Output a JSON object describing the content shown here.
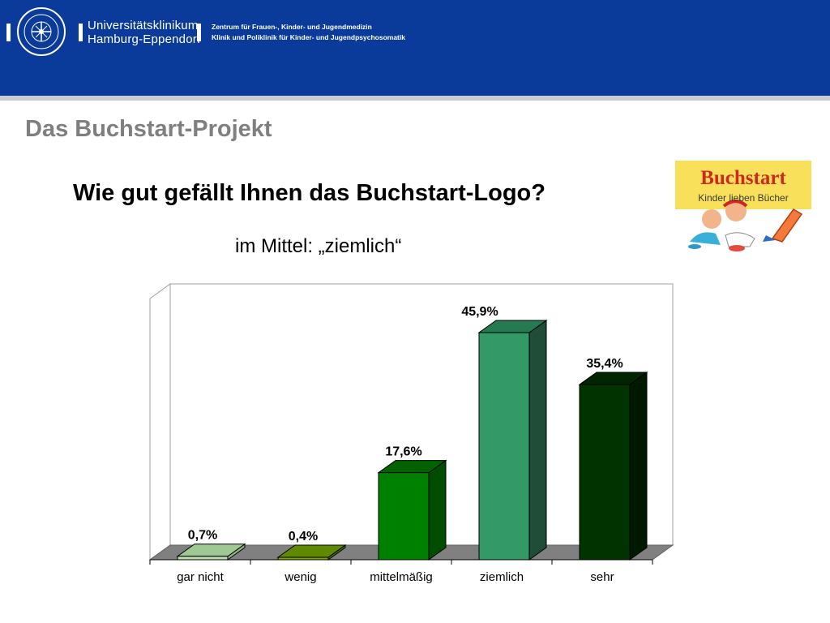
{
  "header": {
    "institution_line1": "Universitätsklinikum",
    "institution_line2": "Hamburg-Eppendorf",
    "department_line1": "Zentrum für Frauen-, Kinder- und Jugendmedizin",
    "department_line2": "Klinik und Poliklinik für Kinder- und Jugendpsychosomatik",
    "seal_icon": "university-seal-icon",
    "background_color": "#0a3a9a"
  },
  "slide": {
    "section_title": "Das Buchstart-Projekt",
    "question": "Wie gut gefällt Ihnen das Buchstart-Logo?",
    "summary": "im Mittel: „ziemlich“"
  },
  "logo": {
    "title": "Buchstart",
    "subtitle": "Kinder lieben Bücher",
    "icon": "buchstart-children-book-logo-icon"
  },
  "chart_data": {
    "type": "bar",
    "categories": [
      "gar nicht",
      "wenig",
      "mittelmäßig",
      "ziemlich",
      "sehr"
    ],
    "values": [
      0.7,
      0.4,
      17.6,
      45.9,
      35.4
    ],
    "value_labels": [
      "0,7%",
      "0,4%",
      "17,6%",
      "45,9%",
      "35,4%"
    ],
    "unit": "%",
    "ylim": [
      0,
      50
    ],
    "grid": false,
    "legend": "none",
    "style": "3d",
    "colors": [
      "#b9dcab",
      "#7ca00f",
      "#008000",
      "#339966",
      "#003300"
    ],
    "side_colors": [
      "#8fb17f",
      "#4d6d00",
      "#004d00",
      "#1f4d37",
      "#001a00"
    ],
    "top_colors": [
      "#a0c894",
      "#5f8a00",
      "#006300",
      "#267a52",
      "#002600"
    ],
    "title": "",
    "xlabel": "",
    "ylabel": ""
  }
}
